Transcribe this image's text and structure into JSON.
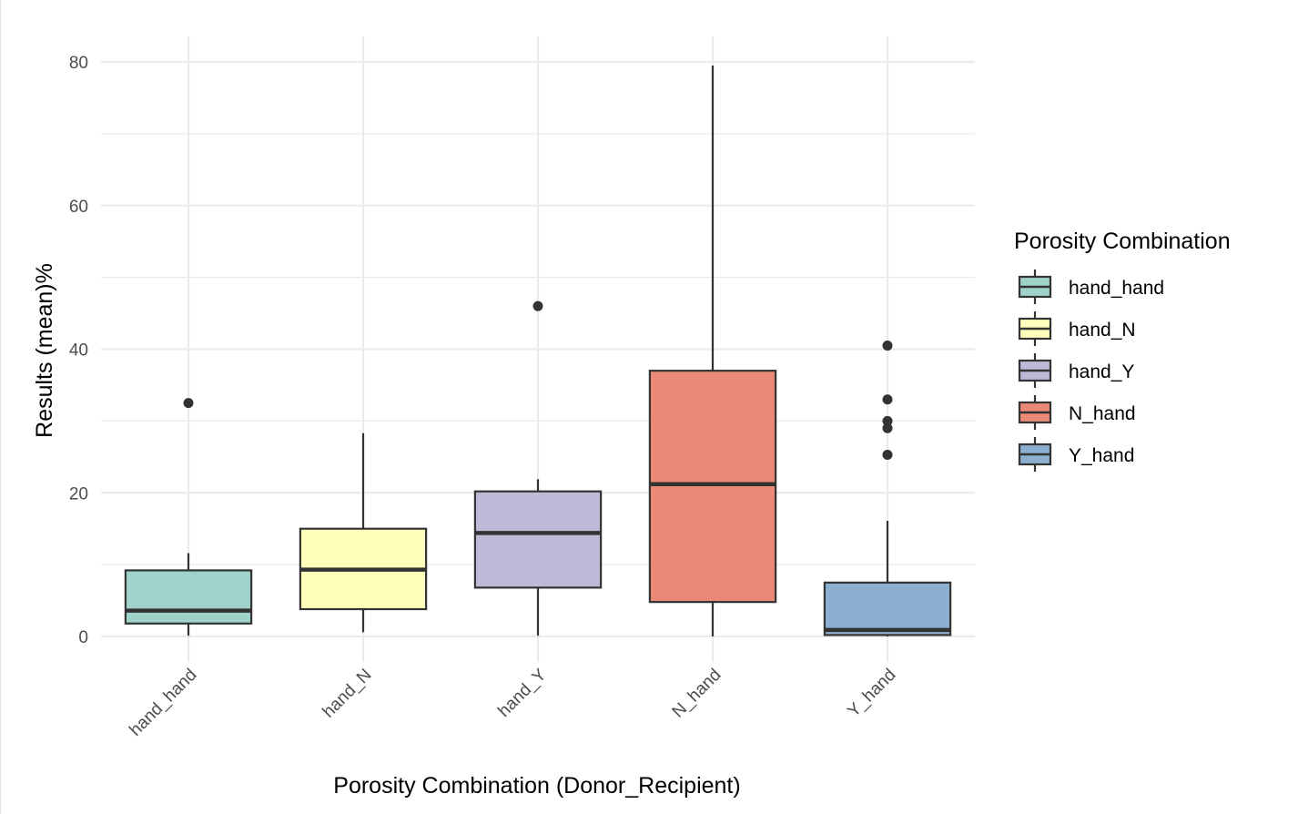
{
  "chart_data": {
    "type": "boxplot",
    "xlabel": "Porosity Combination (Donor_Recipient)",
    "ylabel": "Results (mean)%",
    "ylim": [
      -3.5,
      83.5
    ],
    "yticks": [
      0,
      20,
      40,
      60,
      80
    ],
    "ytick_labels": [
      "0",
      "20",
      "40",
      "60",
      "80"
    ],
    "grid": true,
    "legend": {
      "title": "Porosity Combination",
      "placement": "right"
    },
    "categories": [
      "hand_hand",
      "hand_N",
      "hand_Y",
      "N_hand",
      "Y_hand"
    ],
    "series": [
      {
        "name": "hand_hand",
        "color": "#9fd3c9",
        "whisker_low": 0.1,
        "q1": 1.8,
        "median": 3.6,
        "q3": 9.2,
        "whisker_high": 11.6,
        "outliers": [
          32.5
        ]
      },
      {
        "name": "hand_N",
        "color": "#ffffbb",
        "whisker_low": 0.6,
        "q1": 3.8,
        "median": 9.3,
        "q3": 15.0,
        "whisker_high": 28.3,
        "outliers": []
      },
      {
        "name": "hand_Y",
        "color": "#bdbad8",
        "whisker_low": 0.1,
        "q1": 6.8,
        "median": 14.4,
        "q3": 20.2,
        "whisker_high": 21.9,
        "outliers": [
          46.0
        ]
      },
      {
        "name": "N_hand",
        "color": "#eb8977",
        "whisker_low": 0.0,
        "q1": 4.8,
        "median": 21.2,
        "q3": 37.0,
        "whisker_high": 79.5,
        "outliers": []
      },
      {
        "name": "Y_hand",
        "color": "#8bb0d0",
        "whisker_low": 0.0,
        "q1": 0.2,
        "median": 0.9,
        "q3": 7.5,
        "whisker_high": 16.1,
        "outliers": [
          25.3,
          29.0,
          30.0,
          33.0,
          40.5
        ]
      }
    ]
  }
}
